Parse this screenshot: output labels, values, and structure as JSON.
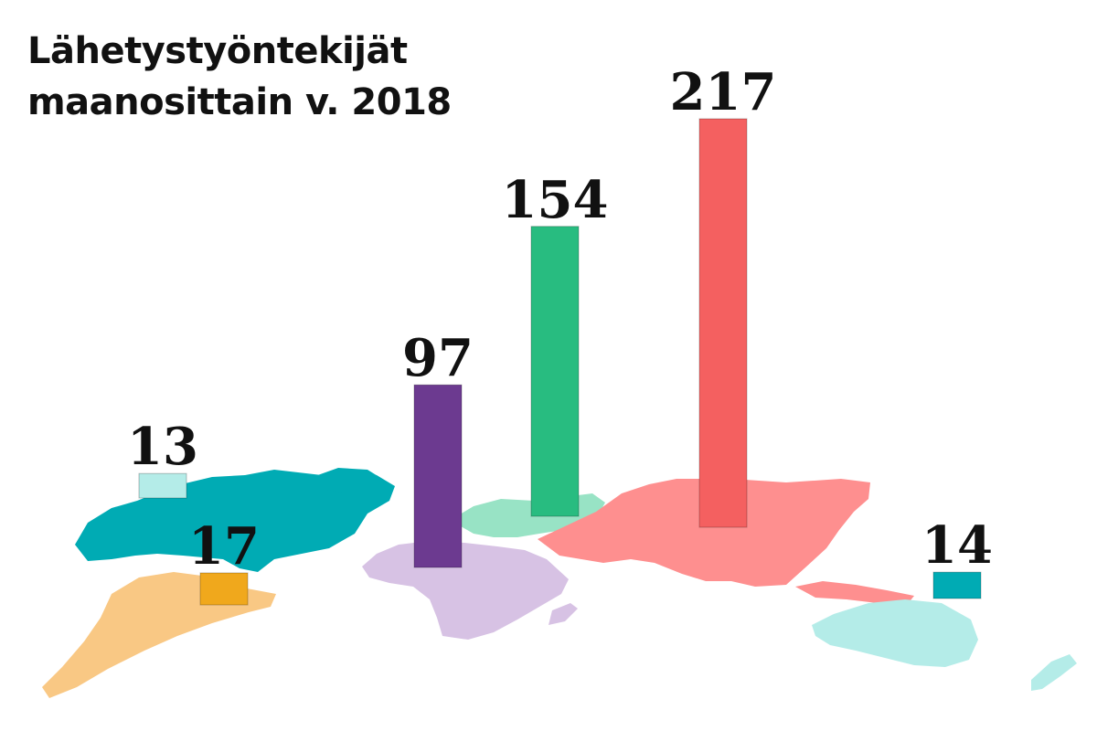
{
  "title_lines": [
    "Lähetystyöntekijät",
    "maanosittain v. 2018"
  ],
  "chart_data": {
    "type": "bar",
    "title": "Lähetystyöntekijät maanosittain v. 2018",
    "xlabel": "",
    "ylabel": "",
    "grid": false,
    "legend": "none",
    "categories": [
      "",
      "",
      "",
      "",
      "",
      ""
    ],
    "values": [
      13,
      17,
      97,
      154,
      217,
      14
    ],
    "colors": [
      "#b4ece8",
      "#f0a81c",
      "#6c3a90",
      "#28bc80",
      "#f46060",
      "#00abb4"
    ],
    "region_colors": [
      "#00abb4",
      "#f9c884",
      "#d7c2e4",
      "#98e3c5",
      "#fe8f8f",
      "#b4ece8"
    ],
    "ylim": [
      0,
      217
    ]
  }
}
